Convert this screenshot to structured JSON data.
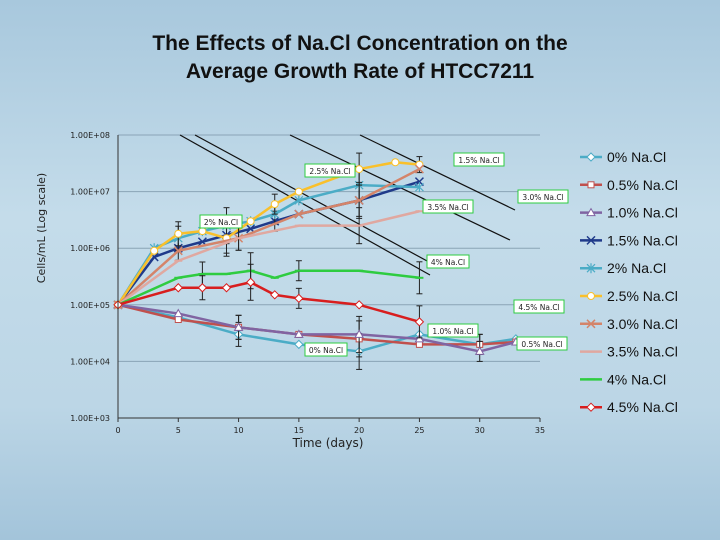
{
  "chart_data": {
    "type": "line",
    "title_lines": [
      "The Effects of Na.Cl Concentration on the",
      "Average Growth Rate of HTCC7211"
    ],
    "xlabel": "Time (days)",
    "ylabel": "Cells/mL (Log scale)",
    "xlim": [
      0,
      35
    ],
    "ylim": [
      1000,
      100000000
    ],
    "y_scale": "log",
    "x_ticks": [
      "0",
      "5",
      "10",
      "15",
      "20",
      "25",
      "30",
      "35"
    ],
    "y_ticks": [
      "1.00E+08",
      "1.00E+07",
      "1.00E+06",
      "1.00E+05",
      "1.00E+04",
      "1.00E+03"
    ],
    "legend_position": "right",
    "series": [
      {
        "name": "0% Na.Cl",
        "color": "#4bacc6",
        "marker": "diamond",
        "x": [
          0,
          5,
          10,
          15,
          20,
          25,
          30,
          33
        ],
        "y": [
          100000,
          60000,
          30000,
          20000,
          15000,
          30000,
          20000,
          25000
        ]
      },
      {
        "name": "0.5% Na.Cl",
        "color": "#c0504d",
        "marker": "square",
        "x": [
          0,
          5,
          10,
          15,
          20,
          25,
          30,
          33
        ],
        "y": [
          100000,
          55000,
          40000,
          30000,
          25000,
          20000,
          20000,
          22000
        ]
      },
      {
        "name": "1.0% Na.Cl",
        "color": "#8064a2",
        "marker": "triangle",
        "x": [
          0,
          5,
          10,
          15,
          20,
          25,
          30,
          33
        ],
        "y": [
          100000,
          70000,
          40000,
          30000,
          30000,
          25000,
          15000,
          22000
        ]
      },
      {
        "name": "1.5% Na.Cl",
        "color": "#1f3a8a",
        "marker": "x",
        "x": [
          0,
          3,
          5,
          7,
          9,
          11,
          13,
          15,
          20,
          25
        ],
        "y": [
          100000,
          700000,
          1000000,
          1300000,
          1700000,
          2200000,
          3000000,
          4000000,
          7000000,
          15000000
        ]
      },
      {
        "name": "2% Na.Cl",
        "color": "#4bacc6",
        "marker": "star",
        "x": [
          0,
          3,
          5,
          7,
          9,
          11,
          13,
          15,
          20,
          25
        ],
        "y": [
          100000,
          1000000,
          1500000,
          2000000,
          2500000,
          3000000,
          4000000,
          7000000,
          13000000,
          12000000
        ]
      },
      {
        "name": "2.5% Na.Cl",
        "color": "#f9c02b",
        "marker": "circle",
        "x": [
          0,
          3,
          5,
          7,
          9,
          11,
          13,
          15,
          20,
          23,
          25
        ],
        "y": [
          100000,
          900000,
          1800000,
          2000000,
          1500000,
          3000000,
          6000000,
          10000000,
          25000000,
          33000000,
          30000000
        ]
      },
      {
        "name": "3.0% Na.Cl",
        "color": "#d4846a",
        "marker": "x",
        "x": [
          0,
          5,
          10,
          15,
          20,
          25
        ],
        "y": [
          100000,
          900000,
          1500000,
          4000000,
          7000000,
          25000000
        ]
      },
      {
        "name": "3.5% Na.Cl",
        "color": "#e0a8a0",
        "marker": "dash",
        "x": [
          0,
          5,
          10,
          15,
          20,
          25
        ],
        "y": [
          100000,
          600000,
          1500000,
          2500000,
          2500000,
          4500000
        ]
      },
      {
        "name": "4% Na.Cl",
        "color": "#2ecc40",
        "marker": "dash",
        "x": [
          0,
          5,
          7,
          9,
          11,
          13,
          15,
          20,
          25
        ],
        "y": [
          100000,
          300000,
          350000,
          350000,
          400000,
          300000,
          400000,
          400000,
          300000
        ]
      },
      {
        "name": "4.5% Na.Cl",
        "color": "#d81e1e",
        "marker": "diamond",
        "x": [
          0,
          5,
          7,
          9,
          11,
          13,
          15,
          20,
          25
        ],
        "y": [
          100000,
          200000,
          200000,
          200000,
          250000,
          150000,
          130000,
          100000,
          50000
        ]
      }
    ],
    "annotations": [
      "2.5% Na.Cl",
      "1.5% Na.Cl",
      "3.0% Na.Cl",
      "3.5% Na.Cl",
      "2% Na.Cl",
      "4% Na.Cl",
      "4.5% Na.Cl",
      "1.0% Na.Cl",
      "0.5% Na.Cl",
      "0% Na.Cl"
    ]
  }
}
